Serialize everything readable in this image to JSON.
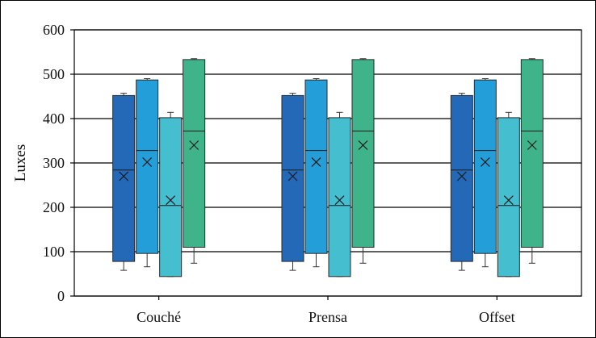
{
  "chart_data": {
    "type": "boxplot",
    "title": "",
    "xlabel": "",
    "ylabel": "Luxes",
    "ylim": [
      0,
      600
    ],
    "yticks": [
      0,
      100,
      200,
      300,
      400,
      500,
      600
    ],
    "grid": "horizontal",
    "categories": [
      "Couché",
      "Prensa",
      "Offset"
    ],
    "series": [
      {
        "color": "#2369B8",
        "boxes": [
          {
            "whisker_low": 58,
            "q1": 78,
            "median": 284,
            "q3": 452,
            "whisker_high": 457,
            "mean": 270
          },
          {
            "whisker_low": 58,
            "q1": 78,
            "median": 284,
            "q3": 452,
            "whisker_high": 457,
            "mean": 270
          },
          {
            "whisker_low": 58,
            "q1": 78,
            "median": 284,
            "q3": 452,
            "whisker_high": 457,
            "mean": 270
          }
        ]
      },
      {
        "color": "#249ED8",
        "boxes": [
          {
            "whisker_low": 66,
            "q1": 96,
            "median": 328,
            "q3": 487,
            "whisker_high": 490,
            "mean": 302
          },
          {
            "whisker_low": 66,
            "q1": 96,
            "median": 328,
            "q3": 487,
            "whisker_high": 490,
            "mean": 302
          },
          {
            "whisker_low": 66,
            "q1": 96,
            "median": 328,
            "q3": 487,
            "whisker_high": 490,
            "mean": 302
          }
        ]
      },
      {
        "color": "#45BED0",
        "boxes": [
          {
            "whisker_low": 44,
            "q1": 44,
            "median": 204,
            "q3": 402,
            "whisker_high": 414,
            "mean": 216
          },
          {
            "whisker_low": 44,
            "q1": 44,
            "median": 204,
            "q3": 402,
            "whisker_high": 414,
            "mean": 216
          },
          {
            "whisker_low": 44,
            "q1": 44,
            "median": 204,
            "q3": 402,
            "whisker_high": 414,
            "mean": 216
          }
        ]
      },
      {
        "color": "#3FB48B",
        "boxes": [
          {
            "whisker_low": 74,
            "q1": 110,
            "median": 372,
            "q3": 533,
            "whisker_high": 535,
            "mean": 340
          },
          {
            "whisker_low": 74,
            "q1": 110,
            "median": 372,
            "q3": 533,
            "whisker_high": 535,
            "mean": 340
          },
          {
            "whisker_low": 74,
            "q1": 110,
            "median": 372,
            "q3": 533,
            "whisker_high": 535,
            "mean": 340
          }
        ]
      }
    ]
  }
}
